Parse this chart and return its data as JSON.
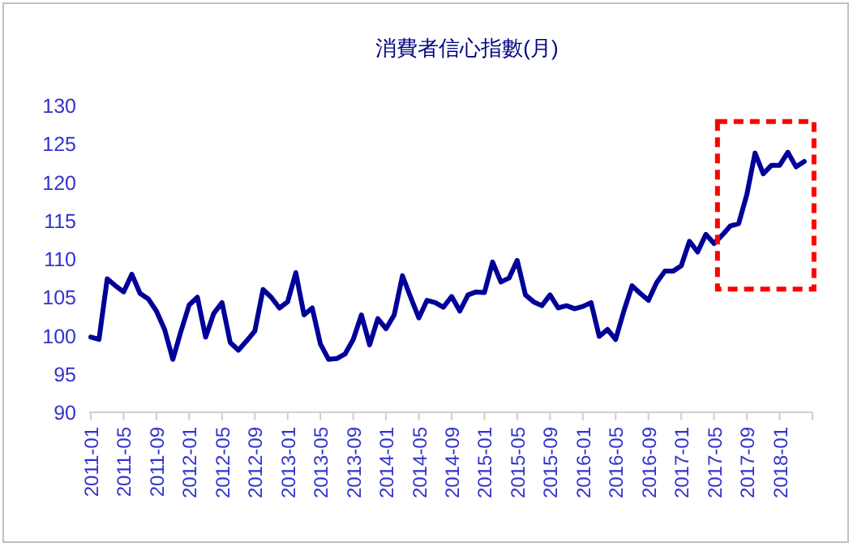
{
  "chart_data": {
    "type": "line",
    "title": "消費者信心指數(月)",
    "x": [
      "2011-01",
      "2011-02",
      "2011-03",
      "2011-04",
      "2011-05",
      "2011-06",
      "2011-07",
      "2011-08",
      "2011-09",
      "2011-10",
      "2011-11",
      "2011-12",
      "2012-01",
      "2012-02",
      "2012-03",
      "2012-04",
      "2012-05",
      "2012-06",
      "2012-07",
      "2012-08",
      "2012-09",
      "2012-10",
      "2012-11",
      "2012-12",
      "2013-01",
      "2013-02",
      "2013-03",
      "2013-04",
      "2013-05",
      "2013-06",
      "2013-07",
      "2013-08",
      "2013-09",
      "2013-10",
      "2013-11",
      "2013-12",
      "2014-01",
      "2014-02",
      "2014-03",
      "2014-04",
      "2014-05",
      "2014-06",
      "2014-07",
      "2014-08",
      "2014-09",
      "2014-10",
      "2014-11",
      "2014-12",
      "2015-01",
      "2015-02",
      "2015-03",
      "2015-04",
      "2015-05",
      "2015-06",
      "2015-07",
      "2015-08",
      "2015-09",
      "2015-10",
      "2015-11",
      "2015-12",
      "2016-01",
      "2016-02",
      "2016-03",
      "2016-04",
      "2016-05",
      "2016-06",
      "2016-07",
      "2016-08",
      "2016-09",
      "2016-10",
      "2016-11",
      "2016-12",
      "2017-01",
      "2017-02",
      "2017-03",
      "2017-04",
      "2017-05",
      "2017-06",
      "2017-07",
      "2017-08",
      "2017-09",
      "2017-10",
      "2017-11",
      "2017-12",
      "2018-01",
      "2018-02",
      "2018-03",
      "2018-04"
    ],
    "series": [
      {
        "color": "#000099",
        "values": [
          99.8,
          99.5,
          107.4,
          106.5,
          105.7,
          108.0,
          105.5,
          104.8,
          103.2,
          100.8,
          96.9,
          100.6,
          104.0,
          105.0,
          99.8,
          102.9,
          104.3,
          99.1,
          98.1,
          99.3,
          100.6,
          106.0,
          105.0,
          103.6,
          104.4,
          108.2,
          102.7,
          103.6,
          98.9,
          96.9,
          97.0,
          97.6,
          99.5,
          102.7,
          98.8,
          102.2,
          100.9,
          102.7,
          107.8,
          105.0,
          102.3,
          104.6,
          104.3,
          103.7,
          105.1,
          103.2,
          105.3,
          105.7,
          105.6,
          109.6,
          107.0,
          107.5,
          109.8,
          105.3,
          104.4,
          103.9,
          105.3,
          103.6,
          103.9,
          103.5,
          103.8,
          104.3,
          99.9,
          100.8,
          99.5,
          103.2,
          106.5,
          105.5,
          104.6,
          106.9,
          108.4,
          108.4,
          109.1,
          112.3,
          110.9,
          113.2,
          112.0,
          113.1,
          114.3,
          114.6,
          118.4,
          123.8,
          121.1,
          122.2,
          122.2,
          123.9,
          122.0,
          122.7
        ]
      }
    ],
    "xlim": [
      "2011-01",
      "2018-05"
    ],
    "xticks": [
      "2011-01",
      "2011-05",
      "2011-09",
      "2012-01",
      "2012-05",
      "2012-09",
      "2013-01",
      "2013-05",
      "2013-09",
      "2014-01",
      "2014-05",
      "2014-09",
      "2015-01",
      "2015-05",
      "2015-09",
      "2016-01",
      "2016-05",
      "2016-09",
      "2017-01",
      "2017-05",
      "2017-09",
      "2018-01"
    ],
    "ylim": [
      90,
      130
    ],
    "yticks": [
      90,
      95,
      100,
      105,
      110,
      115,
      120,
      125,
      130
    ],
    "marker": "none",
    "line_style": "solid"
  }
}
